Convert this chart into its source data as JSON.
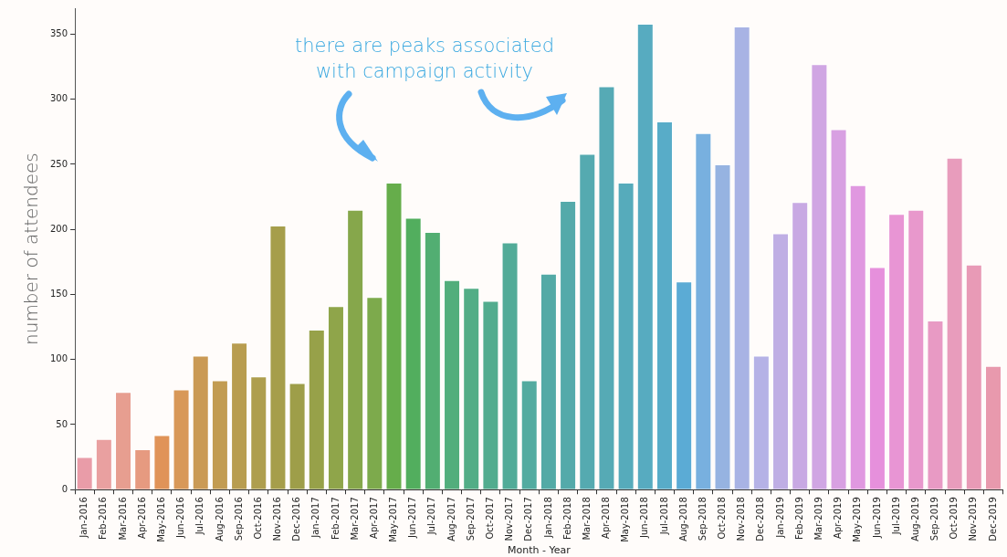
{
  "chart_data": {
    "type": "bar",
    "xlabel": "Month - Year",
    "ylabel": "number of attendees",
    "annotations": [
      "there are peaks associated\nwith campaign activity"
    ],
    "categories": [
      "Jan-2016",
      "Feb-2016",
      "Mar-2016",
      "Apr-2016",
      "May-2016",
      "Jun-2016",
      "Jul-2016",
      "Aug-2016",
      "Sep-2016",
      "Oct-2016",
      "Nov-2016",
      "Dec-2016",
      "Jan-2017",
      "Feb-2017",
      "Mar-2017",
      "Apr-2017",
      "May-2017",
      "Jun-2017",
      "Jul-2017",
      "Aug-2017",
      "Sep-2017",
      "Oct-2017",
      "Nov-2017",
      "Dec-2017",
      "Jan-2018",
      "Feb-2018",
      "Mar-2018",
      "Apr-2018",
      "May-2018",
      "Jun-2018",
      "Jul-2018",
      "Aug-2018",
      "Sep-2018",
      "Oct-2018",
      "Nov-2018",
      "Dec-2018",
      "Jan-2019",
      "Feb-2019",
      "Mar-2019",
      "Apr-2019",
      "May-2019",
      "Jun-2019",
      "Jul-2019",
      "Aug-2019",
      "Sep-2019",
      "Oct-2019",
      "Nov-2019",
      "Dec-2019"
    ],
    "values": [
      25,
      39,
      75,
      31,
      42,
      77,
      103,
      84,
      113,
      87,
      203,
      82,
      123,
      141,
      215,
      148,
      236,
      209,
      198,
      161,
      155,
      145,
      190,
      84,
      166,
      222,
      258,
      310,
      236,
      358,
      283,
      160,
      274,
      250,
      356,
      103,
      197,
      221,
      327,
      277,
      234,
      171,
      212,
      215,
      130,
      255,
      173,
      95
    ],
    "colors": [
      "#e99ca8",
      "#e9a0a0",
      "#e79e90",
      "#e69a80",
      "#e09358",
      "#d89858",
      "#ca9a55",
      "#c29c52",
      "#b89d50",
      "#ae9e4e",
      "#a69e4b",
      "#9e9e49",
      "#97a149",
      "#8fa54a",
      "#86a74b",
      "#7daa4c",
      "#66ad4b",
      "#52ae5e",
      "#52ae72",
      "#52ae7c",
      "#52ad86",
      "#52ac8e",
      "#52ab98",
      "#53aba0",
      "#53aaa6",
      "#54aaaa",
      "#55aab0",
      "#56aab5",
      "#56abbb",
      "#57abc0",
      "#58acc8",
      "#5babd5",
      "#78b0df",
      "#96b3e1",
      "#a8b3e4",
      "#b5b2e6",
      "#bfaee4",
      "#c8a9e3",
      "#d0a6e3",
      "#d8a0e2",
      "#e098e0",
      "#e690dc",
      "#e895d4",
      "#e898cc",
      "#e89ac4",
      "#e89cbc",
      "#e89ab6",
      "#e899ad"
    ],
    "ylim": [
      0,
      370
    ],
    "yticks": [
      0,
      50,
      100,
      150,
      200,
      250,
      300,
      350
    ],
    "grid": false,
    "legend": false
  }
}
